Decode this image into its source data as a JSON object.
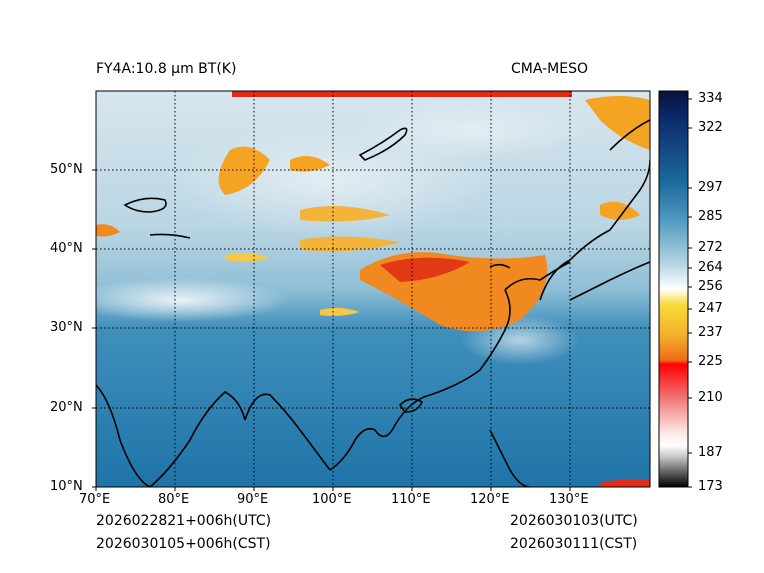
{
  "titles": {
    "left": "FY4A:10.8 µm BT(K)",
    "right": "CMA-MESO"
  },
  "map": {
    "lon_range": [
      70,
      140
    ],
    "lat_range": [
      10,
      60
    ],
    "lon_ticks": [
      {
        "value": 70,
        "label": "70°E"
      },
      {
        "value": 80,
        "label": "80°E"
      },
      {
        "value": 90,
        "label": "90°E"
      },
      {
        "value": 100,
        "label": "100°E"
      },
      {
        "value": 110,
        "label": "110°E"
      },
      {
        "value": 120,
        "label": "120°E"
      },
      {
        "value": 130,
        "label": "130°E"
      }
    ],
    "lat_ticks": [
      {
        "value": 10,
        "label": "10°N"
      },
      {
        "value": 20,
        "label": "20°N"
      },
      {
        "value": 30,
        "label": "30°N"
      },
      {
        "value": 40,
        "label": "40°N"
      },
      {
        "value": 50,
        "label": "50°N"
      }
    ]
  },
  "colorbar": {
    "min": 173,
    "max": 334,
    "tick_labels": [
      "334",
      "322",
      "297",
      "285",
      "272",
      "264",
      "256",
      "247",
      "237",
      "225",
      "210",
      "187",
      "173"
    ],
    "tick_values": [
      334,
      322,
      297,
      285,
      272,
      264,
      256,
      247,
      237,
      225,
      210,
      187,
      173
    ]
  },
  "footer": {
    "init_utc": "2026022821+006h(UTC)",
    "init_cst": "2026030105+006h(CST)",
    "valid_utc": "2026030103(UTC)",
    "valid_cst": "2026030111(CST)"
  }
}
